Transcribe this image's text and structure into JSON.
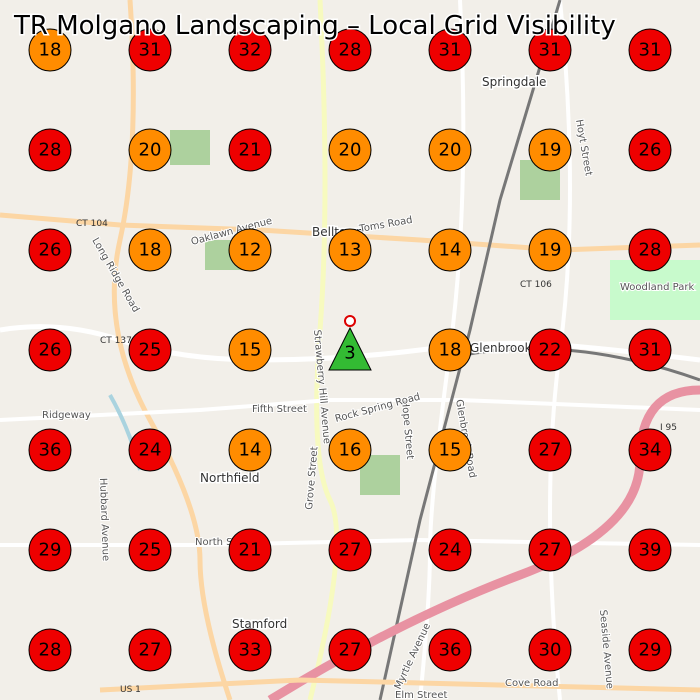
{
  "title": "TR Molgano Landscaping – Local Grid Visibility",
  "map_labels": [
    "Springdale",
    "Belltown",
    "Glenbrook",
    "Northfield",
    "Stamford",
    "Woodland Park",
    "CT 104",
    "CT 106",
    "CT 137",
    "US 1",
    "I 95",
    "Fifth Street",
    "Long Ridge Road",
    "Strawberry Hill Avenue",
    "Hope Street",
    "Oaklawn Avenue",
    "Toms Road",
    "Rock Spring Road",
    "North Street",
    "Elm Street",
    "Cove Road",
    "Hubbard Avenue",
    "Ridgeway",
    "Glenbrook Road",
    "Grove Street",
    "Hoyt Street",
    "Seaside Avenue",
    "Myrtle Avenue"
  ],
  "grid": [
    [
      {
        "value": 18,
        "color": "#ff8c00"
      },
      {
        "value": 31,
        "color": "#ee0000"
      },
      {
        "value": 32,
        "color": "#ee0000"
      },
      {
        "value": 28,
        "color": "#ee0000"
      },
      {
        "value": 31,
        "color": "#ee0000"
      },
      {
        "value": 31,
        "color": "#ee0000"
      },
      {
        "value": 31,
        "color": "#ee0000"
      }
    ],
    [
      {
        "value": 28,
        "color": "#ee0000"
      },
      {
        "value": 20,
        "color": "#ff8c00"
      },
      {
        "value": 21,
        "color": "#ee0000"
      },
      {
        "value": 20,
        "color": "#ff8c00"
      },
      {
        "value": 20,
        "color": "#ff8c00"
      },
      {
        "value": 19,
        "color": "#ff8c00"
      },
      {
        "value": 26,
        "color": "#ee0000"
      }
    ],
    [
      {
        "value": 26,
        "color": "#ee0000"
      },
      {
        "value": 18,
        "color": "#ff8c00"
      },
      {
        "value": 12,
        "color": "#ff8c00"
      },
      {
        "value": 13,
        "color": "#ff8c00"
      },
      {
        "value": 14,
        "color": "#ff8c00"
      },
      {
        "value": 19,
        "color": "#ff8c00"
      },
      {
        "value": 28,
        "color": "#ee0000"
      }
    ],
    [
      {
        "value": 26,
        "color": "#ee0000"
      },
      {
        "value": 25,
        "color": "#ee0000"
      },
      {
        "value": 15,
        "color": "#ff8c00"
      },
      {
        "value": 3,
        "color": "#33bb33",
        "shape": "triangle"
      },
      {
        "value": 18,
        "color": "#ff8c00"
      },
      {
        "value": 22,
        "color": "#ee0000"
      },
      {
        "value": 31,
        "color": "#ee0000"
      }
    ],
    [
      {
        "value": 36,
        "color": "#ee0000"
      },
      {
        "value": 24,
        "color": "#ee0000"
      },
      {
        "value": 14,
        "color": "#ff8c00"
      },
      {
        "value": 16,
        "color": "#ff8c00"
      },
      {
        "value": 15,
        "color": "#ff8c00"
      },
      {
        "value": 27,
        "color": "#ee0000"
      },
      {
        "value": 34,
        "color": "#ee0000"
      }
    ],
    [
      {
        "value": 29,
        "color": "#ee0000"
      },
      {
        "value": 25,
        "color": "#ee0000"
      },
      {
        "value": 21,
        "color": "#ee0000"
      },
      {
        "value": 27,
        "color": "#ee0000"
      },
      {
        "value": 24,
        "color": "#ee0000"
      },
      {
        "value": 27,
        "color": "#ee0000"
      },
      {
        "value": 39,
        "color": "#ee0000"
      }
    ],
    [
      {
        "value": 28,
        "color": "#ee0000"
      },
      {
        "value": 27,
        "color": "#ee0000"
      },
      {
        "value": 33,
        "color": "#ee0000"
      },
      {
        "value": 27,
        "color": "#ee0000"
      },
      {
        "value": 36,
        "color": "#ee0000"
      },
      {
        "value": 30,
        "color": "#ee0000"
      },
      {
        "value": 29,
        "color": "#ee0000"
      }
    ]
  ]
}
